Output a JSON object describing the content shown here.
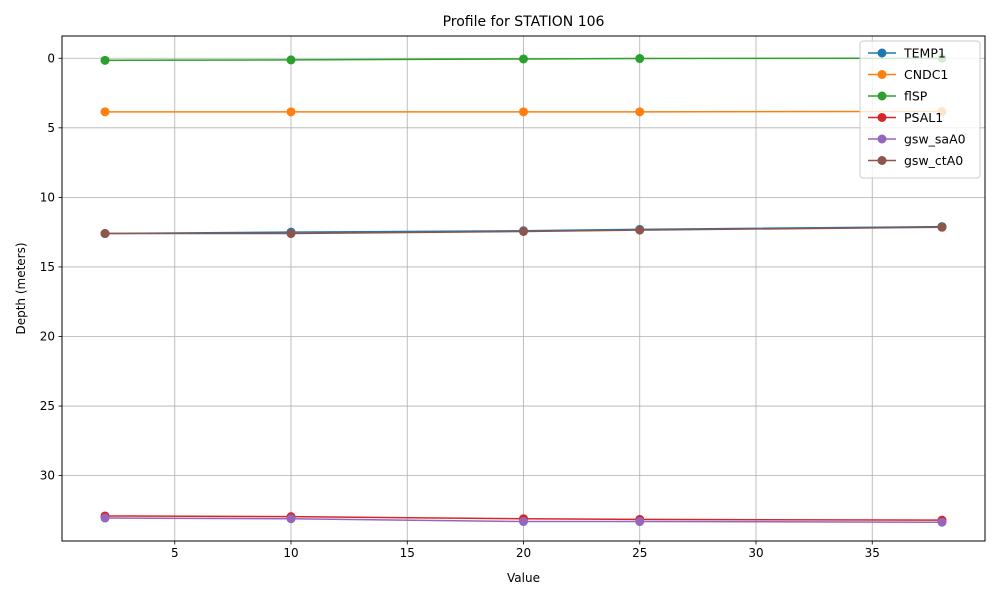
{
  "chart_data": {
    "type": "line",
    "title": "Profile for STATION 106",
    "xlabel": "Value",
    "ylabel": "Depth (meters)",
    "xlim": [
      0.15,
      39.85
    ],
    "ylim": [
      34.7,
      -1.6
    ],
    "y_inverted": true,
    "grid": true,
    "legend_position": "top-right",
    "x_ticks": [
      5,
      10,
      15,
      20,
      25,
      30,
      35
    ],
    "y_ticks": [
      0,
      5,
      10,
      15,
      20,
      25,
      30
    ],
    "series": [
      {
        "name": "TEMP1",
        "color": "#1f77b4",
        "x": [
          2,
          10,
          20,
          25,
          38
        ],
        "y": [
          12.6,
          12.5,
          12.4,
          12.3,
          12.1
        ]
      },
      {
        "name": "CNDC1",
        "color": "#ff7f0e",
        "x": [
          2,
          10,
          20,
          25,
          38
        ],
        "y": [
          3.85,
          3.85,
          3.85,
          3.85,
          3.82
        ]
      },
      {
        "name": "flSP",
        "color": "#2ca02c",
        "x": [
          2,
          10,
          20,
          25,
          38
        ],
        "y": [
          0.15,
          0.12,
          0.05,
          0.02,
          0.0
        ]
      },
      {
        "name": "PSAL1",
        "color": "#d62728",
        "x": [
          2,
          10,
          20,
          25,
          38
        ],
        "y": [
          32.9,
          32.95,
          33.1,
          33.15,
          33.2
        ]
      },
      {
        "name": "gsw_saA0",
        "color": "#9467bd",
        "x": [
          2,
          10,
          20,
          25,
          38
        ],
        "y": [
          33.05,
          33.1,
          33.3,
          33.3,
          33.35
        ]
      },
      {
        "name": "gsw_ctA0",
        "color": "#8c564b",
        "x": [
          2,
          10,
          20,
          25,
          38
        ],
        "y": [
          12.6,
          12.6,
          12.45,
          12.35,
          12.15
        ]
      }
    ]
  }
}
